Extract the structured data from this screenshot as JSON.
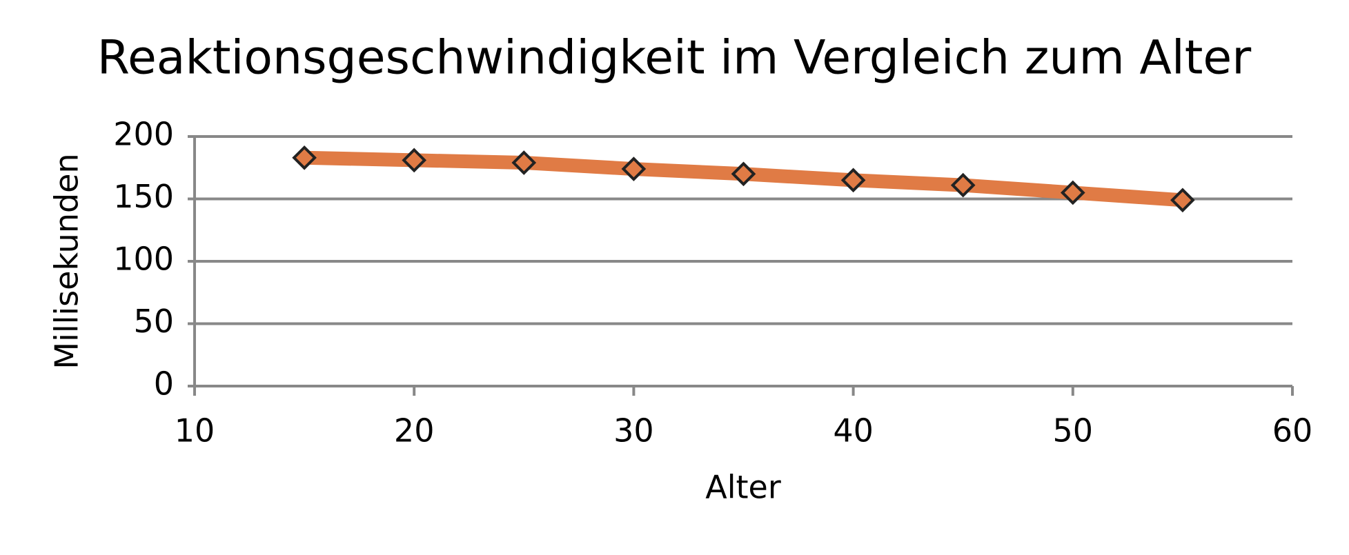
{
  "chart_data": {
    "type": "line",
    "title": "Reaktionsgeschwindigkeit im Vergleich zum Alter",
    "x_label": "Alter",
    "y_label": "Millisekunden",
    "x": [
      15,
      20,
      25,
      30,
      35,
      40,
      45,
      50,
      55
    ],
    "series": [
      {
        "name": "Millisekunden",
        "color": "#e07b45",
        "values": [
          183,
          181,
          179,
          174,
          170,
          165,
          161,
          155,
          149
        ]
      }
    ],
    "xlim": [
      10,
      60
    ],
    "xticks": [
      10,
      20,
      30,
      40,
      50,
      60
    ],
    "ylim": [
      0,
      200
    ],
    "yticks": [
      0,
      50,
      100,
      150,
      200
    ],
    "grid": true,
    "legend": false
  }
}
